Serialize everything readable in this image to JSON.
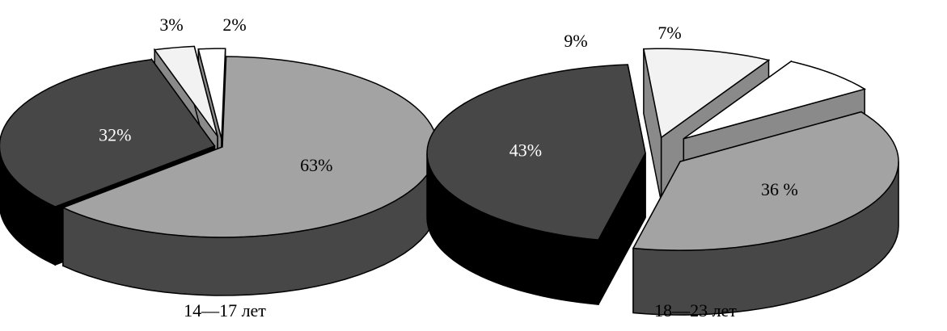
{
  "chart_data": [
    {
      "type": "pie",
      "style": "3d-exploded",
      "caption": "14—17 лет",
      "slices": [
        {
          "value": 63,
          "label": "63%"
        },
        {
          "value": 32,
          "label": "32%"
        },
        {
          "value": 3,
          "label": "3%"
        },
        {
          "value": 2,
          "label": "2%"
        }
      ]
    },
    {
      "type": "pie",
      "style": "3d-exploded",
      "caption": "18—23 лет",
      "slices": [
        {
          "value": 36,
          "label": "36 %"
        },
        {
          "value": 43,
          "label": "43%"
        },
        {
          "value": 9,
          "label": "9%"
        },
        {
          "value": 7,
          "label": "7%"
        }
      ]
    }
  ],
  "slice_colors": {
    "top": [
      "#a3a3a3",
      "#474747",
      "#f2f2f2",
      "#ffffff"
    ],
    "side": [
      "#474747",
      "#000000",
      "#8a8a8a",
      "#8a8a8a"
    ],
    "label": [
      "#000000",
      "#ffffff",
      "#000000",
      "#000000"
    ]
  }
}
